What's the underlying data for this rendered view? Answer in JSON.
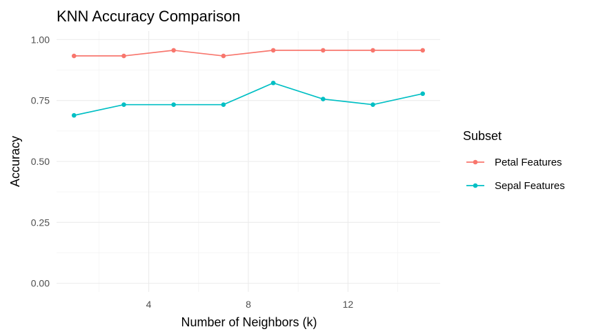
{
  "chart_data": {
    "type": "line",
    "title": "KNN Accuracy Comparison",
    "xlabel": "Number of Neighbors (k)",
    "ylabel": "Accuracy",
    "x": [
      1,
      3,
      5,
      7,
      9,
      11,
      13,
      15
    ],
    "xlim": [
      0.3,
      15.7
    ],
    "ylim": [
      -0.035,
      1.035
    ],
    "x_ticks": [
      4,
      8,
      12
    ],
    "x_tick_labels": [
      "4",
      "8",
      "12"
    ],
    "y_ticks": [
      0,
      0.25,
      0.5,
      0.75,
      1
    ],
    "y_tick_labels": [
      "0.00",
      "0.25",
      "0.50",
      "0.75",
      "1.00"
    ],
    "grid": true,
    "legend": {
      "title": "Subset",
      "position": "right"
    },
    "series": [
      {
        "name": "Petal Features",
        "color": "#F8766D",
        "values": [
          0.933,
          0.933,
          0.956,
          0.933,
          0.956,
          0.956,
          0.956,
          0.956
        ]
      },
      {
        "name": "Sepal Features",
        "color": "#00BFC4",
        "values": [
          0.689,
          0.733,
          0.733,
          0.733,
          0.822,
          0.756,
          0.733,
          0.778
        ]
      }
    ]
  }
}
